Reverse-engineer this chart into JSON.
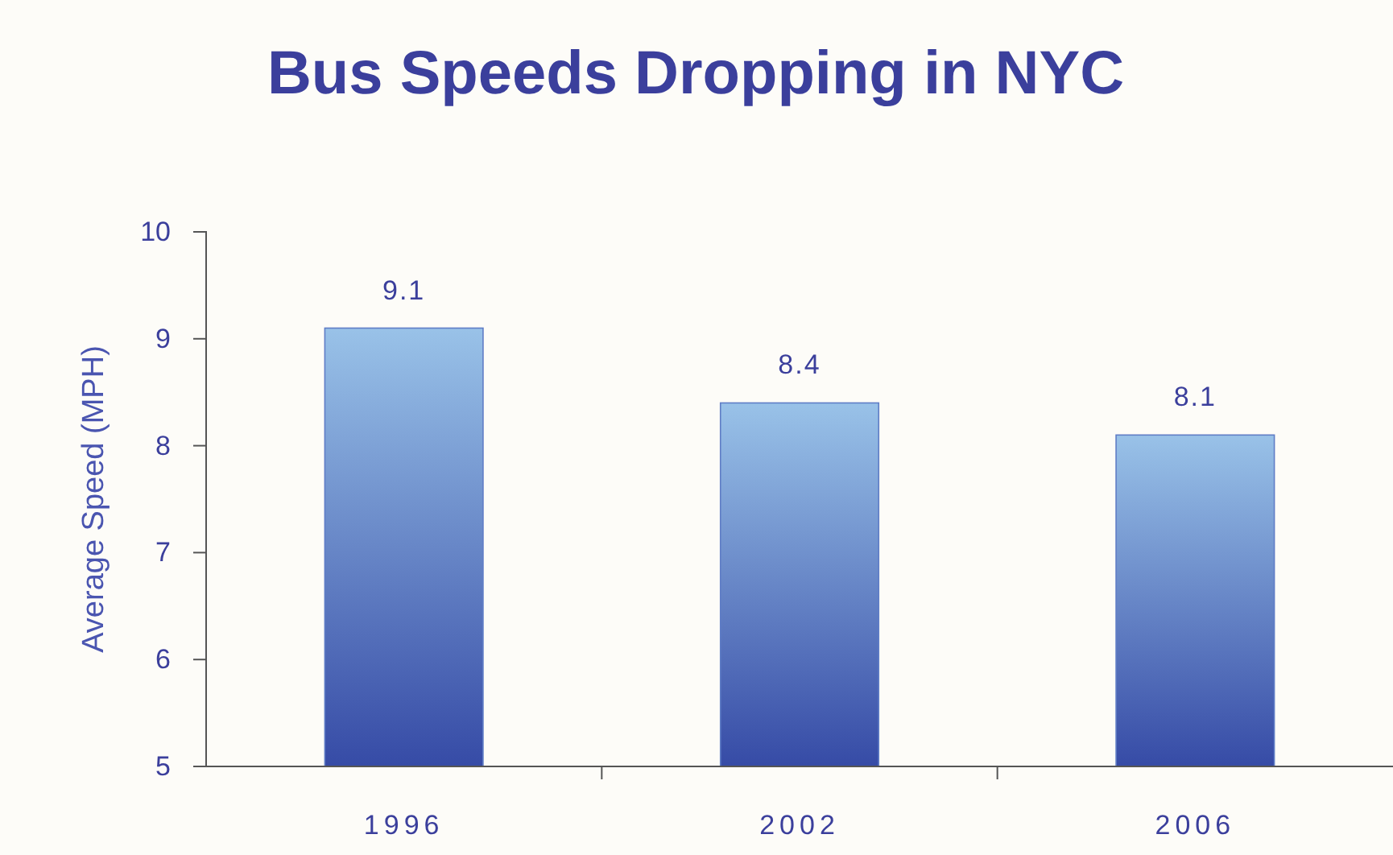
{
  "chart_data": {
    "type": "bar",
    "title": "Bus Speeds Dropping in NYC",
    "ylabel": "Average Speed (MPH)",
    "categories": [
      "1996",
      "2002",
      "2006"
    ],
    "values": [
      9.1,
      8.4,
      8.1
    ],
    "color": "#5f7dc6",
    "ylim": [
      5,
      10
    ],
    "yticks": [
      5,
      6,
      7,
      8,
      9,
      10
    ],
    "data_labels": true,
    "grid": false
  }
}
